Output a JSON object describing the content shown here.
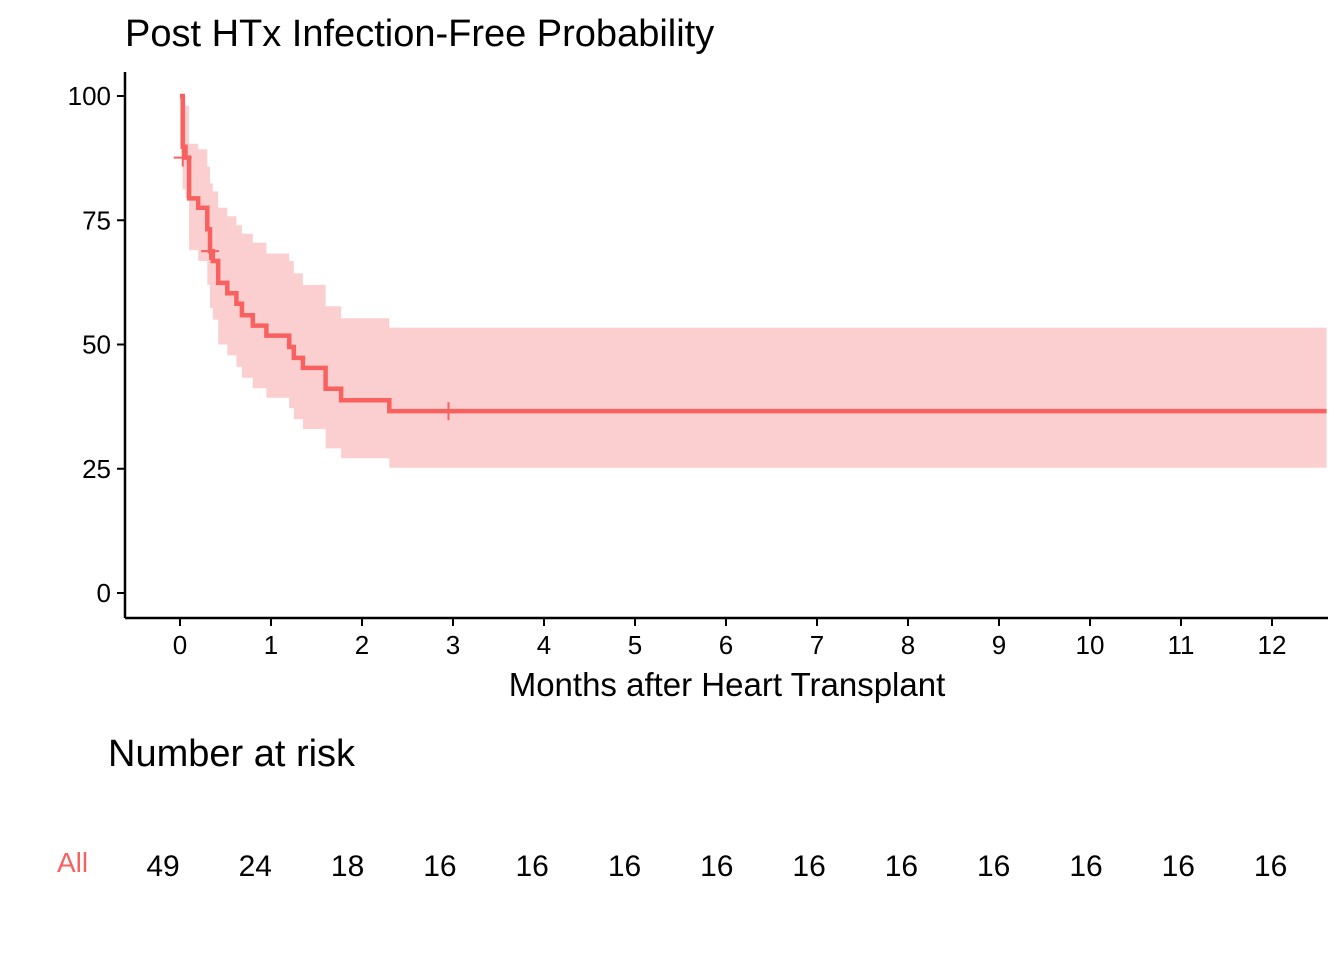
{
  "chart_data": {
    "type": "line",
    "title": "Post HTx Infection-Free Probability",
    "xlabel": "Months after Heart Transplant",
    "ylabel": "",
    "xlim": [
      -0.2,
      12.6
    ],
    "ylim": [
      -5,
      105
    ],
    "x_ticks": [
      0,
      1,
      2,
      3,
      4,
      5,
      6,
      7,
      8,
      9,
      10,
      11,
      12
    ],
    "x_tick_labels": [
      "0",
      "1",
      "2",
      "3",
      "4",
      "5",
      "6",
      "7",
      "8",
      "9",
      "10",
      "11",
      "12"
    ],
    "y_ticks": [
      0,
      25,
      50,
      75,
      100
    ],
    "y_tick_labels": [
      "0",
      "25",
      "50",
      "75",
      "100"
    ],
    "grid": false,
    "legend": "none",
    "series": [
      {
        "color": "#F8615F",
        "band_color": "#FBCFCF",
        "step_points": [
          [
            0.0,
            100
          ],
          [
            0.03,
            89.8
          ],
          [
            0.06,
            87.6
          ],
          [
            0.1,
            79.4
          ],
          [
            0.2,
            77.5
          ],
          [
            0.3,
            73.2
          ],
          [
            0.33,
            68.8
          ],
          [
            0.36,
            66.8
          ],
          [
            0.42,
            62.4
          ],
          [
            0.52,
            60.3
          ],
          [
            0.62,
            58.2
          ],
          [
            0.68,
            55.9
          ],
          [
            0.8,
            53.8
          ],
          [
            0.95,
            51.8
          ],
          [
            1.2,
            49.5
          ],
          [
            1.25,
            47.3
          ],
          [
            1.35,
            45.3
          ],
          [
            1.6,
            41.1
          ],
          [
            1.77,
            38.8
          ],
          [
            2.3,
            36.6
          ],
          [
            12.6,
            36.6
          ]
        ],
        "lower_ci": [
          [
            0.0,
            100
          ],
          [
            0.03,
            81.2
          ],
          [
            0.06,
            79.5
          ],
          [
            0.1,
            69.0
          ],
          [
            0.2,
            66.8
          ],
          [
            0.3,
            62.0
          ],
          [
            0.33,
            57.3
          ],
          [
            0.36,
            55.0
          ],
          [
            0.42,
            50.0
          ],
          [
            0.52,
            47.8
          ],
          [
            0.62,
            45.5
          ],
          [
            0.68,
            43.3
          ],
          [
            0.8,
            41.2
          ],
          [
            0.95,
            39.3
          ],
          [
            1.2,
            37.2
          ],
          [
            1.25,
            35.0
          ],
          [
            1.35,
            33.0
          ],
          [
            1.6,
            29.1
          ],
          [
            1.77,
            27.1
          ],
          [
            2.3,
            25.2
          ],
          [
            12.6,
            25.2
          ]
        ],
        "upper_ci": [
          [
            0.0,
            100
          ],
          [
            0.03,
            100
          ],
          [
            0.06,
            98.0
          ],
          [
            0.1,
            90.4
          ],
          [
            0.2,
            89.3
          ],
          [
            0.3,
            85.8
          ],
          [
            0.33,
            82.4
          ],
          [
            0.36,
            80.8
          ],
          [
            0.42,
            77.5
          ],
          [
            0.52,
            75.8
          ],
          [
            0.62,
            74.0
          ],
          [
            0.68,
            72.3
          ],
          [
            0.8,
            70.5
          ],
          [
            0.95,
            68.3
          ],
          [
            1.2,
            66.8
          ],
          [
            1.25,
            64.3
          ],
          [
            1.35,
            62.0
          ],
          [
            1.6,
            57.7
          ],
          [
            1.77,
            55.3
          ],
          [
            2.3,
            53.4
          ],
          [
            12.6,
            53.4
          ]
        ],
        "censor_marks": [
          [
            0.03,
            87.6
          ],
          [
            0.33,
            68.8
          ],
          [
            2.95,
            36.6
          ]
        ]
      }
    ],
    "risk_table": {
      "title": "Number at risk",
      "strata_label": "All",
      "strata_color": "#F8615F",
      "times": [
        0,
        1,
        2,
        3,
        4,
        5,
        6,
        7,
        8,
        9,
        10,
        11,
        12
      ],
      "values": [
        "49",
        "24",
        "18",
        "16",
        "16",
        "16",
        "16",
        "16",
        "16",
        "16",
        "16",
        "16",
        "16"
      ]
    }
  }
}
